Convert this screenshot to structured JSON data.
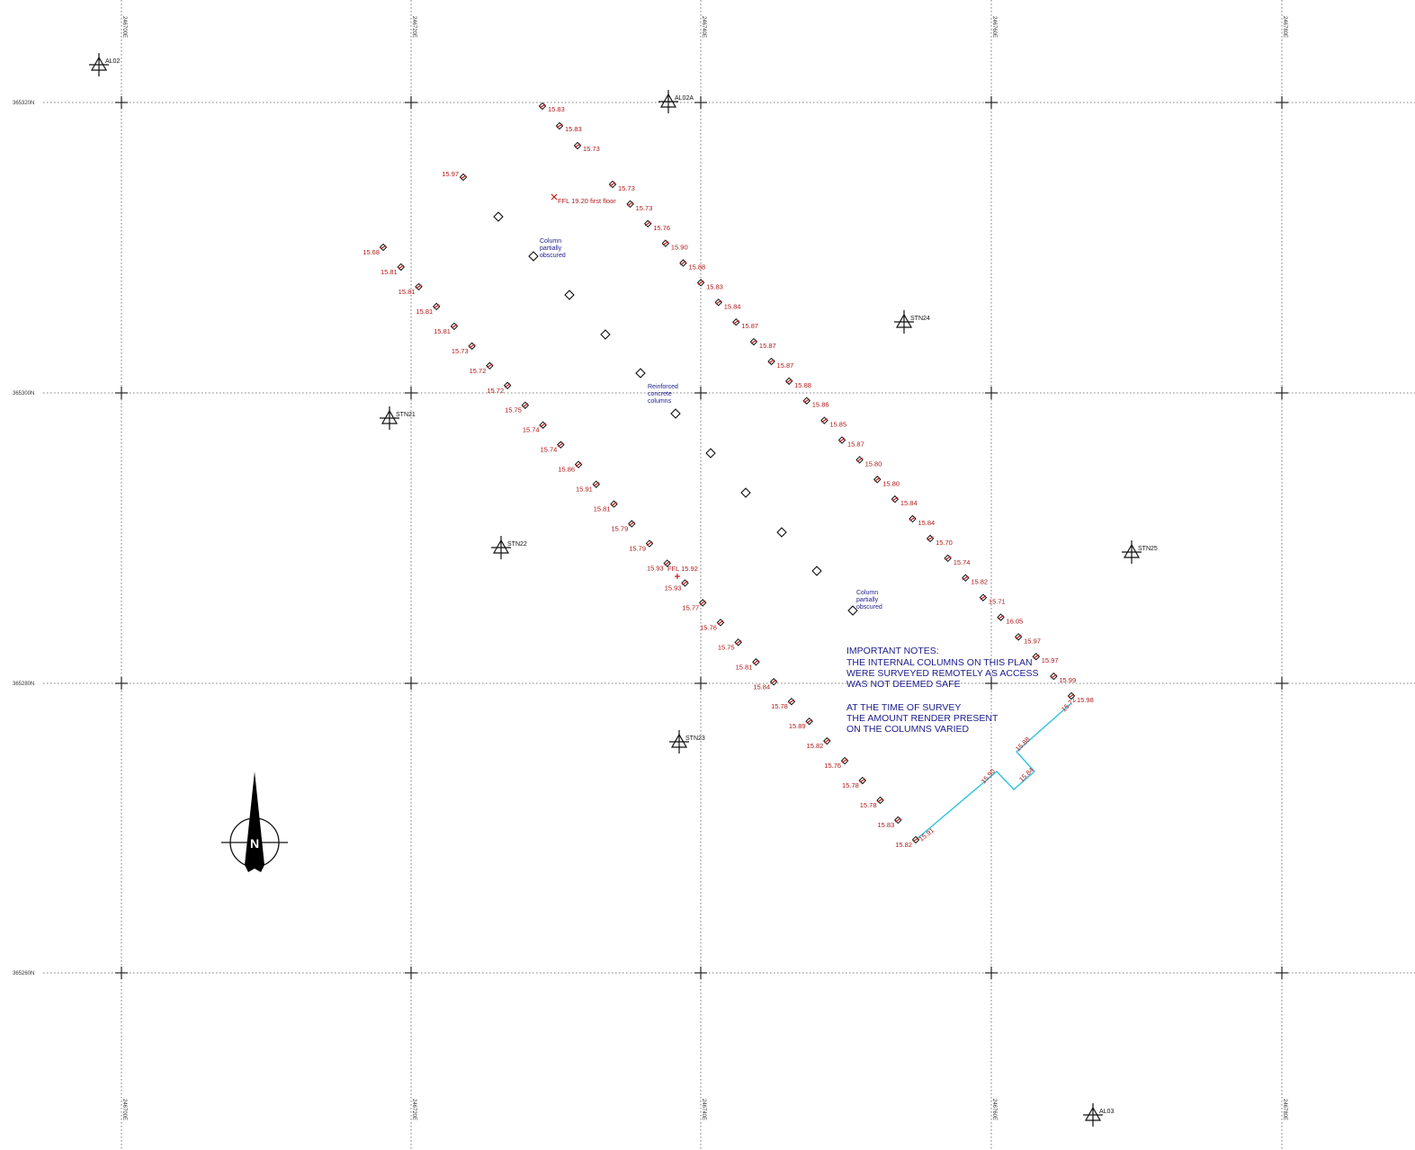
{
  "grid": {
    "eastings": [
      "246700E",
      "246720E",
      "246740E",
      "246760E",
      "246780E"
    ],
    "northings": [
      "365320N",
      "365300N",
      "365280N",
      "365260N"
    ]
  },
  "stations": [
    {
      "label": "AL02"
    },
    {
      "label": "AL02A"
    },
    {
      "label": "STN24"
    },
    {
      "label": "STN21"
    },
    {
      "label": "STN22"
    },
    {
      "label": "STN25"
    },
    {
      "label": "STN23"
    },
    {
      "label": "AL03"
    }
  ],
  "levels_west": [
    "15.68",
    "15.81",
    "15.81",
    "15.81",
    "15.81",
    "15.73",
    "15.72",
    "15.72",
    "15.75",
    "15.74",
    "15.74",
    "15.86",
    "15.91",
    "15.81",
    "15.79",
    "15.79",
    "15.93",
    "15.93",
    "15.77",
    "15.76",
    "15.75",
    "15.81",
    "15.84",
    "15.78",
    "15.89",
    "15.82",
    "15.76",
    "15.78",
    "15.78",
    "15.83",
    "15.82"
  ],
  "levels_north": [
    "15.83",
    "15.83",
    "15.73"
  ],
  "level_nw": "15.97",
  "levels_east": [
    "15.73",
    "15.73",
    "15.76",
    "15.90",
    "15.88",
    "15.83",
    "15.84",
    "15.87",
    "15.87",
    "15.87",
    "15.88",
    "15.86",
    "15.85",
    "15.87",
    "15.80",
    "15.80",
    "15.84",
    "15.84",
    "15.70",
    "15.74",
    "15.82",
    "15.71",
    "16.05",
    "15.97",
    "15.97",
    "15.99",
    "15.98"
  ],
  "boundary_levels": [
    "15.91",
    "15.90",
    "15.88",
    "15.84",
    "15.72"
  ],
  "ffl_first": "FFL 19.20 first floor",
  "ffl_ground": "FFL 15.92",
  "col_note_1": [
    "Column",
    "partially",
    "obscured"
  ],
  "col_note_2": [
    "Reinforced",
    "concrete",
    "columns"
  ],
  "col_note_3": [
    "Column",
    "partially",
    "obscured"
  ],
  "notes": [
    "IMPORTANT NOTES:",
    "THE INTERNAL COLUMNS ON THIS PLAN",
    "WERE SURVEYED REMOTELY AS ACCESS",
    "WAS NOT DEEMED SAFE",
    "",
    "AT THE TIME OF SURVEY",
    "THE AMOUNT RENDER PRESENT",
    "ON THE COLUMNS VARIED"
  ],
  "north_label": "N",
  "colors": {
    "grid": "#555555",
    "levels": "#b01818",
    "notes": "#1c1c8c",
    "boundary": "#2ec4e0"
  }
}
